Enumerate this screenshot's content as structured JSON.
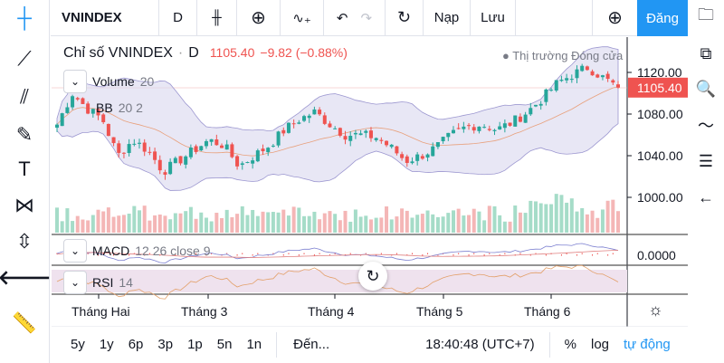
{
  "toolbar": {
    "symbol": "VNINDEX",
    "interval": "D",
    "load": "Nạp",
    "save": "Lưu",
    "signup": "Đăng"
  },
  "legend": {
    "title": "Chỉ số VNINDEX",
    "sep": "·",
    "interval": "D",
    "price": "1105.40",
    "change": "−9.82 (−0.88%)",
    "market_status": "Thị trường Đóng cửa"
  },
  "indicators": {
    "volume": "Volume",
    "volume_params": "20",
    "bb": "BB",
    "bb_params": "20 2",
    "macd": "MACD",
    "macd_params": "12 26 close 9",
    "rsi": "RSI",
    "rsi_params": "14"
  },
  "price_axis": {
    "ticks": [
      "1120.00",
      "1080.00",
      "1040.00",
      "1000.00"
    ],
    "last_price": "1105.40",
    "macd_tick": "0.0000"
  },
  "time_axis": [
    "Tháng Hai",
    "Tháng 3",
    "Tháng 4",
    "Tháng 5",
    "Tháng 6"
  ],
  "bottom": {
    "ranges": [
      "5y",
      "1y",
      "6p",
      "3p",
      "1p",
      "5n",
      "1n"
    ],
    "goto": "Đến...",
    "clock": "18:40:48 (UTC+7)",
    "percent": "%",
    "log": "log",
    "auto": "tự động"
  },
  "colors": {
    "up": "#26a69a",
    "down": "#ef5350",
    "accent": "#2196f3",
    "bb_fill": "#d9d7ef"
  },
  "chart_data": {
    "type": "candlestick",
    "ylim": [
      985,
      1135
    ],
    "close_keypoints": [
      1070,
      1100,
      1085,
      1075,
      1040,
      1055,
      1045,
      1025,
      1035,
      1045,
      1055,
      1050,
      1030,
      1040,
      1050,
      1065,
      1075,
      1082,
      1070,
      1060,
      1060,
      1058,
      1048,
      1035,
      1040,
      1048,
      1060,
      1068,
      1070,
      1065,
      1072,
      1082,
      1095,
      1110,
      1118,
      1125,
      1115,
      1105.4
    ]
  }
}
